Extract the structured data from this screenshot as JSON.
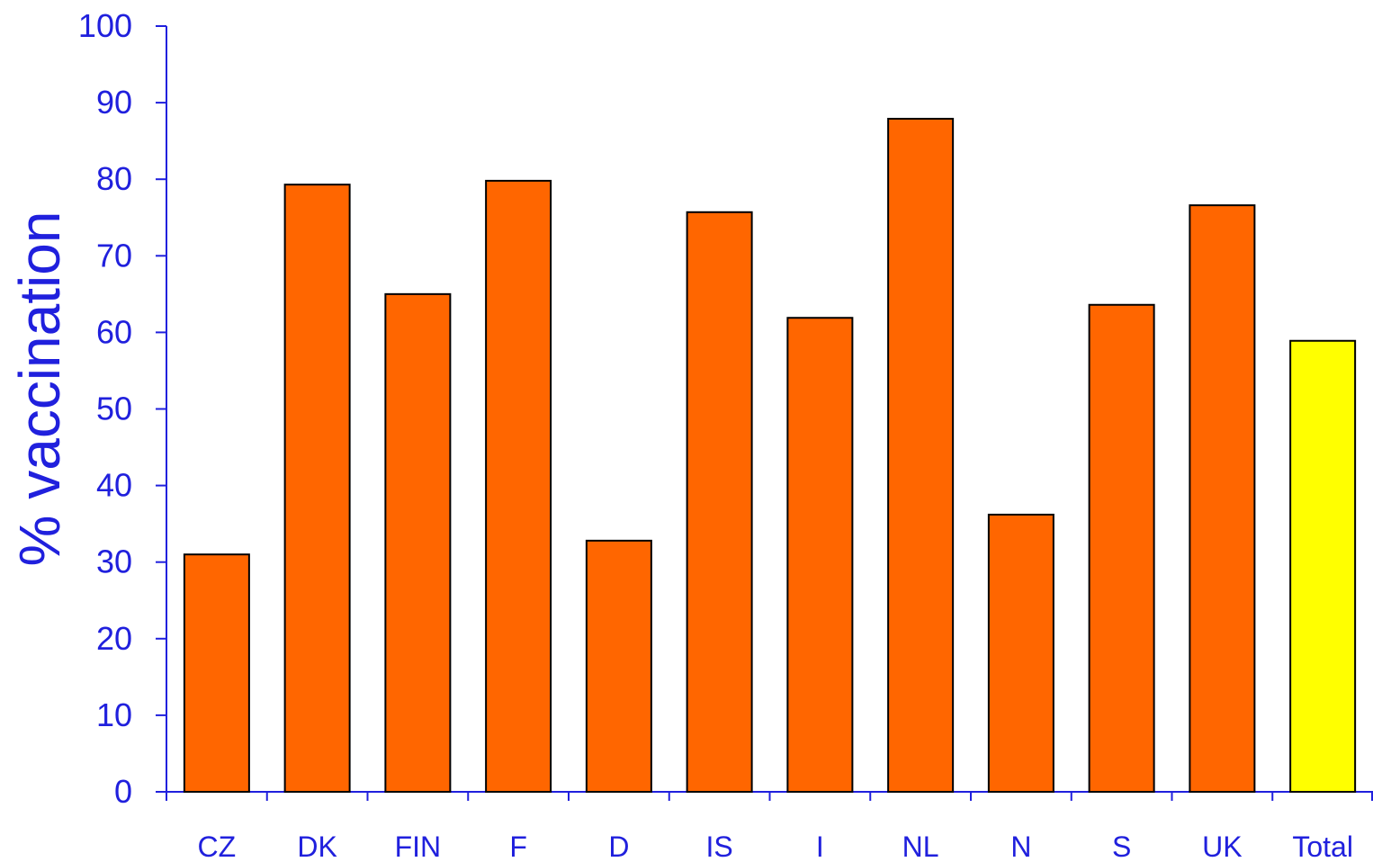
{
  "chart_data": {
    "type": "bar",
    "ylabel": "% vaccination",
    "xlabel": "",
    "title": "",
    "ylim": [
      0,
      100
    ],
    "yticks": [
      0,
      10,
      20,
      30,
      40,
      50,
      60,
      70,
      80,
      90,
      100
    ],
    "categories": [
      "CZ",
      "DK",
      "FIN",
      "F",
      "D",
      "IS",
      "I",
      "NL",
      "N",
      "S",
      "UK",
      "Total"
    ],
    "values": [
      31,
      79.3,
      65,
      79.8,
      32.8,
      75.7,
      61.9,
      87.9,
      36.2,
      63.6,
      76.6,
      58.9
    ],
    "grid": false,
    "legend": "none"
  },
  "colors": {
    "bar": "#FF6600",
    "highlight_bar": "#FFFF00",
    "bar_stroke": "#000000",
    "text": "#2020DD",
    "axis": "#2020DD"
  }
}
